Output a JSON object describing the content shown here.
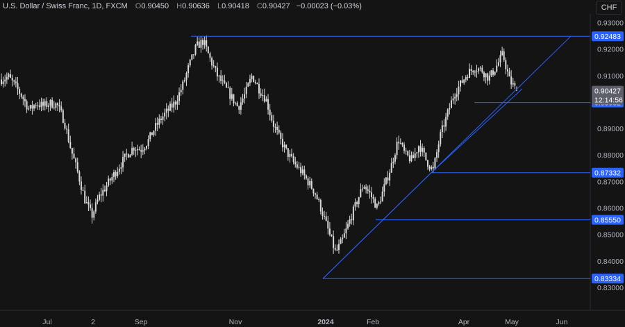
{
  "header": {
    "symbol": "U.S. Dollar / Swiss Franc, 1D, FXCM",
    "o_label": "O",
    "o": "0.90450",
    "h_label": "H",
    "h": "0.90636",
    "l_label": "L",
    "l": "0.90418",
    "c_label": "C",
    "c": "0.90427",
    "change": "−0.00023 (−0.03%)"
  },
  "currency_button": "CHF",
  "colors": {
    "background": "#141414",
    "candle": "#d9d9d9",
    "lines": "#2962ff",
    "label_bg": "#2962ff",
    "price_label_bg": "#5d606b",
    "axis_text": "#b2b5be"
  },
  "chart_data": {
    "type": "candlestick",
    "ylim": [
      0.8267,
      0.9345
    ],
    "y_ticks": [
      "0.93000",
      "0.92000",
      "0.91000",
      "0.90000",
      "0.89000",
      "0.88000",
      "0.87000",
      "0.86000",
      "0.85000",
      "0.84000",
      "0.83000"
    ],
    "x_ticks": [
      "Jun",
      "Jul",
      "2",
      "Sep",
      "Nov",
      "2024",
      "Feb",
      "Apr",
      "May",
      "Jun"
    ],
    "last_price": {
      "value": "0.90427",
      "countdown": "12:14:56"
    },
    "levels": [
      {
        "label": "0.92483",
        "value": 0.92483
      },
      {
        "label": "0.89982",
        "value": 0.89982
      },
      {
        "label": "0.87332",
        "value": 0.87332
      },
      {
        "label": "0.85550",
        "value": 0.8555
      },
      {
        "label": "0.83334",
        "value": 0.83334
      }
    ],
    "trendlines": [
      {
        "from": 0.83334,
        "to": 0.92483
      },
      {
        "from": 0.83334,
        "to": 0.87332
      },
      {
        "from": 0.87332,
        "to": 0.905
      }
    ],
    "close_path": [
      0.9085,
      0.9095,
      0.906,
      0.902,
      0.897,
      0.8995,
      0.8985,
      0.8995,
      0.899,
      0.893,
      0.882,
      0.873,
      0.863,
      0.857,
      0.864,
      0.868,
      0.872,
      0.876,
      0.88,
      0.883,
      0.882,
      0.885,
      0.89,
      0.894,
      0.897,
      0.9,
      0.906,
      0.914,
      0.921,
      0.923,
      0.916,
      0.91,
      0.906,
      0.902,
      0.898,
      0.903,
      0.91,
      0.905,
      0.901,
      0.892,
      0.886,
      0.881,
      0.877,
      0.874,
      0.87,
      0.866,
      0.859,
      0.851,
      0.843,
      0.848,
      0.855,
      0.862,
      0.869,
      0.865,
      0.86,
      0.868,
      0.876,
      0.886,
      0.88,
      0.878,
      0.884,
      0.878,
      0.874,
      0.887,
      0.895,
      0.903,
      0.907,
      0.911,
      0.913,
      0.912,
      0.909,
      0.913,
      0.918,
      0.908,
      0.9043
    ]
  }
}
